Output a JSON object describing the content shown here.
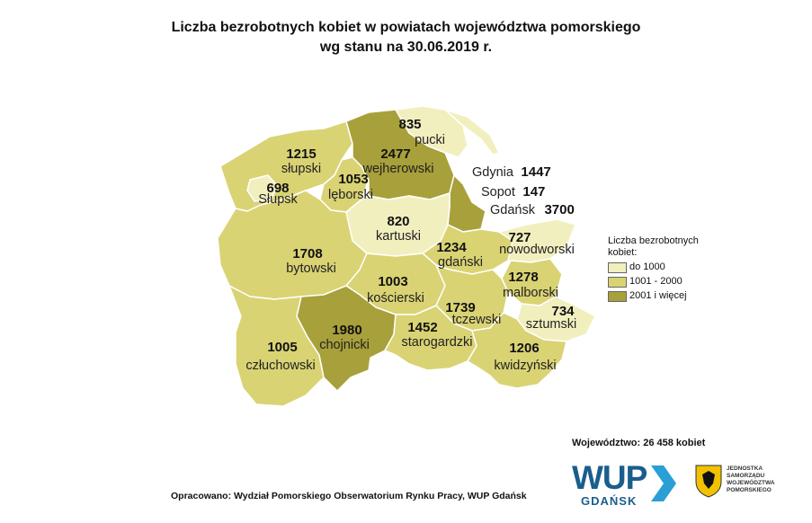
{
  "title": {
    "line1": "Liczba bezrobotnych kobiet w powiatach województwa pomorskiego",
    "line2": "wg stanu na 30.06.2019 r."
  },
  "colors": {
    "do_1000": "#f2efbf",
    "1001_2000": "#d9d374",
    "2001_plus": "#a8a03a",
    "border": "#ffffff"
  },
  "legend": {
    "title": "Liczba bezrobotnych kobiet:",
    "items": [
      {
        "label": "do 1000",
        "color": "#f2efbf"
      },
      {
        "label": "1001 - 2000",
        "color": "#d9d374"
      },
      {
        "label": "2001 i więcej",
        "color": "#a8a03a"
      }
    ]
  },
  "districts": [
    {
      "name": "pucki",
      "value": "835"
    },
    {
      "name": "wejherowski",
      "value": "2477"
    },
    {
      "name": "słupski",
      "value": "1215"
    },
    {
      "name": "lęborski",
      "value": "1053"
    },
    {
      "name": "Słupsk",
      "value": "698"
    },
    {
      "name": "kartuski",
      "value": "820"
    },
    {
      "name": "gdański",
      "value": "1234"
    },
    {
      "name": "nowodworski",
      "value": "727"
    },
    {
      "name": "bytowski",
      "value": "1708"
    },
    {
      "name": "kościerski",
      "value": "1003"
    },
    {
      "name": "malborski",
      "value": "1278"
    },
    {
      "name": "tczewski",
      "value": "1739"
    },
    {
      "name": "sztumski",
      "value": "734"
    },
    {
      "name": "chojnicki",
      "value": "1980"
    },
    {
      "name": "starogardzki",
      "value": "1452"
    },
    {
      "name": "człuchowski",
      "value": "1005"
    },
    {
      "name": "kwidzyński",
      "value": "1206"
    }
  ],
  "cities": [
    {
      "name": "Gdynia",
      "value": "1447"
    },
    {
      "name": "Sopot",
      "value": "147"
    },
    {
      "name": "Gdańsk",
      "value": "3700"
    }
  ],
  "total": "Województwo: 26 458 kobiet",
  "source": "Opracowano: Wydział Pomorskiego Obserwatorium Rynku Pracy, WUP Gdańsk",
  "logo": {
    "wup": "WUP",
    "gdansk": "GDAŃSK",
    "region_text": "JEDNOSTKA SAMORZĄDU WOJEWÓDZTWA POMORSKIEGO"
  }
}
